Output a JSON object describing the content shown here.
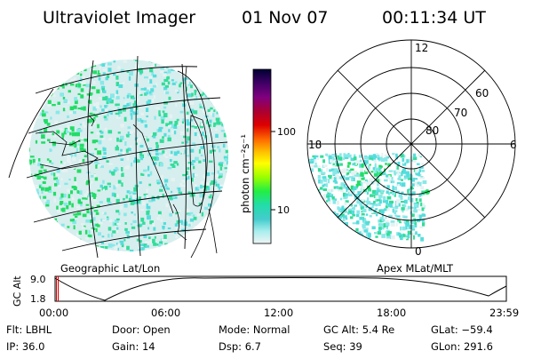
{
  "header": {
    "title": "Ultraviolet Imager",
    "date": "01 Nov 07",
    "time": "00:11:34 UT"
  },
  "colorbar": {
    "label": "photon cm⁻²s⁻¹",
    "ticks": [
      "100",
      "10"
    ],
    "colors": [
      "#000033",
      "#2a0055",
      "#6a0090",
      "#9b0040",
      "#cc0000",
      "#ff6600",
      "#ffaa00",
      "#ffff00",
      "#aaff00",
      "#33ff33",
      "#22dd99",
      "#33cccc",
      "#66dddd",
      "#bbeeee",
      "#e8f0f0"
    ]
  },
  "left_panel": {
    "caption": "Geographic Lat/Lon"
  },
  "right_panel": {
    "caption": "Apex MLat/MLT",
    "mlt_labels": {
      "top": "12",
      "left": "18",
      "right": "6",
      "bottom": "0"
    },
    "lat_labels": [
      "80",
      "70",
      "60"
    ]
  },
  "timeline": {
    "ylabel": "GC Alt",
    "y_ticks": [
      "9.0",
      "1.8"
    ],
    "x_ticks": [
      "00:00",
      "06:00",
      "12:00",
      "18:00",
      "23:59"
    ],
    "cursor_color": "#cc0000"
  },
  "info": {
    "row1": [
      {
        "label": "Flt:",
        "value": "LBHL"
      },
      {
        "label": "Door:",
        "value": "Open"
      },
      {
        "label": "Mode:",
        "value": "Normal"
      },
      {
        "label": "GC Alt:",
        "value": "5.4 Re"
      },
      {
        "label": "GLat:",
        "value": "−59.4"
      }
    ],
    "row2": [
      {
        "label": "IP:",
        "value": "36.0"
      },
      {
        "label": "Gain:",
        "value": "14"
      },
      {
        "label": "Dsp:",
        "value": "6.7"
      },
      {
        "label": "Seq:",
        "value": "39"
      },
      {
        "label": "GLon:",
        "value": "291.6"
      }
    ]
  }
}
